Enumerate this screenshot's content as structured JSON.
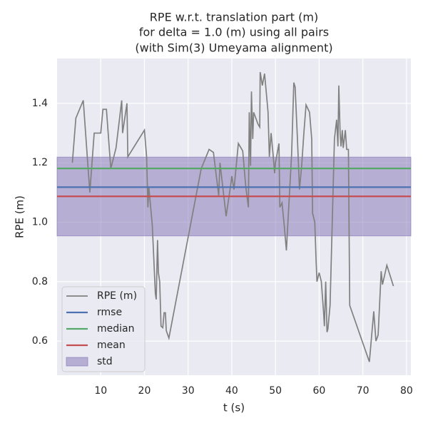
{
  "chart_data": {
    "type": "line",
    "title": [
      "RPE w.r.t. translation part (m)",
      "for delta = 1.0 (m) using all pairs",
      "(with Sim(3) Umeyama alignment)"
    ],
    "xlabel": "t (s)",
    "ylabel": "RPE (m)",
    "xlim": [
      0,
      81
    ],
    "ylim": [
      0.485,
      1.551
    ],
    "xticks": [
      10,
      20,
      30,
      40,
      50,
      60,
      70,
      80
    ],
    "yticks": [
      0.6,
      0.8,
      {
        "value": 1,
        "label": "1.0"
      },
      1.2,
      1.4
    ],
    "grid": true,
    "legend": "lower left",
    "series": [
      {
        "name": "RPE (m)",
        "color": "#808080",
        "x": [
          3.5,
          4.3,
          6.0,
          7.5,
          8.5,
          10,
          10.5,
          11.3,
          12.3,
          13.5,
          14.8,
          15,
          16,
          16.2,
          20,
          20.5,
          20.8,
          21,
          21.8,
          22.5,
          22.7,
          23,
          23.2,
          23.5,
          23.8,
          24.2,
          24.5,
          24.8,
          25,
          25.6,
          33,
          34.8,
          35.8,
          37,
          37.3,
          38.7,
          39.8,
          40,
          40.5,
          41.5,
          42.5,
          43.2,
          43.8,
          44,
          44.3,
          44.5,
          44.8,
          45,
          46,
          46.4,
          46.5,
          47,
          47.5,
          48,
          48.3,
          48.6,
          49,
          49.5,
          49.8,
          50,
          50.8,
          51,
          51.5,
          52,
          52.5,
          53.7,
          54.2,
          54.5,
          55,
          55.5,
          56,
          56.5,
          57,
          57.8,
          58.3,
          58.5,
          59,
          59.3,
          59.5,
          60,
          60.5,
          61,
          61.2,
          61.5,
          61.8,
          62,
          62.5,
          63,
          63.5,
          64,
          64.3,
          64.5,
          64.8,
          65,
          65.3,
          65.5,
          66,
          66.3,
          66.7,
          67,
          71.5,
          72.5,
          73,
          73.5,
          74.2,
          74.5,
          75.5,
          77
        ],
        "values": [
          1.2,
          1.35,
          1.41,
          1.1,
          1.3,
          1.3,
          1.38,
          1.38,
          1.18,
          1.25,
          1.41,
          1.3,
          1.4,
          1.22,
          1.31,
          1.22,
          1.05,
          1.12,
          0.99,
          0.76,
          0.74,
          0.94,
          0.83,
          0.8,
          0.65,
          0.645,
          0.695,
          0.695,
          0.635,
          0.61,
          1.18,
          1.245,
          1.235,
          1.09,
          1.2,
          1.02,
          1.13,
          1.155,
          1.11,
          1.265,
          1.24,
          1.12,
          1.05,
          1.37,
          1.19,
          1.44,
          1.28,
          1.37,
          1.33,
          1.32,
          1.505,
          1.46,
          1.5,
          1.42,
          1.37,
          1.22,
          1.3,
          1.22,
          1.165,
          1.2,
          1.265,
          1.05,
          1.065,
          0.99,
          0.905,
          1.23,
          1.47,
          1.455,
          1.29,
          1.11,
          1.19,
          1.3,
          1.395,
          1.37,
          1.28,
          1.03,
          1.0,
          0.87,
          0.8,
          0.83,
          0.8,
          0.7,
          0.65,
          0.8,
          0.63,
          0.64,
          0.72,
          1.0,
          1.28,
          1.345,
          1.255,
          1.46,
          1.3,
          1.255,
          1.31,
          1.25,
          1.31,
          1.245,
          1.245,
          0.72,
          0.53,
          0.7,
          0.6,
          0.62,
          0.835,
          0.79,
          0.855,
          0.785
        ]
      }
    ],
    "hlines": [
      {
        "name": "rmse",
        "color": "#4c72b0",
        "value": 1.118
      },
      {
        "name": "median",
        "color": "#55a868",
        "value": 1.181
      },
      {
        "name": "mean",
        "color": "#c44e52",
        "value": 1.087
      }
    ],
    "band": {
      "name": "std",
      "color": "#8172b3",
      "range": [
        0.954,
        1.219
      ]
    }
  }
}
